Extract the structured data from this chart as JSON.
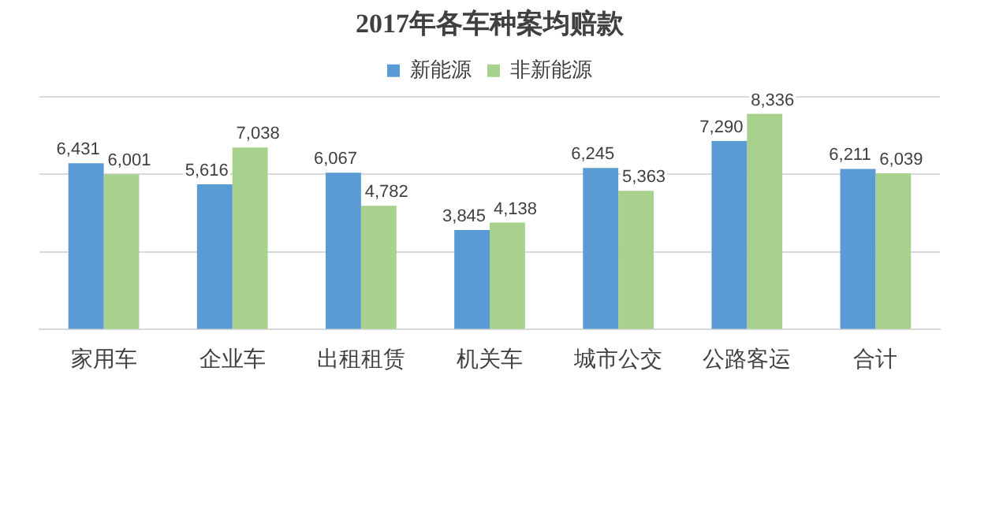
{
  "chart_data": {
    "type": "bar",
    "title": "2017年各车种案均赔款",
    "categories": [
      "家用车",
      "企业车",
      "出租租赁",
      "机关车",
      "城市公交",
      "公路客运",
      "合计"
    ],
    "series": [
      {
        "name": "新能源",
        "color": "#5b9bd5",
        "values": [
          6431,
          5616,
          6067,
          3845,
          6245,
          7290,
          6211
        ],
        "value_labels": [
          "6,431",
          "5,616",
          "6,067",
          "3,845",
          "6,245",
          "7,290",
          "6,211"
        ]
      },
      {
        "name": "非新能源",
        "color": "#a9d18e",
        "values": [
          6001,
          7038,
          4782,
          4138,
          5363,
          8336,
          6039
        ],
        "value_labels": [
          "6,001",
          "7,038",
          "4,782",
          "4,138",
          "5,363",
          "8,336",
          "6,039"
        ]
      }
    ],
    "ylim": [
      0,
      9000
    ],
    "yticks": [
      {
        "value": 0,
        "label": null
      },
      {
        "value": 3000,
        "label": null
      },
      {
        "value": 6000,
        "label": null
      },
      {
        "value": 9000,
        "label": null
      }
    ],
    "tick_labels": "x",
    "grid": "y",
    "legend": "top"
  }
}
